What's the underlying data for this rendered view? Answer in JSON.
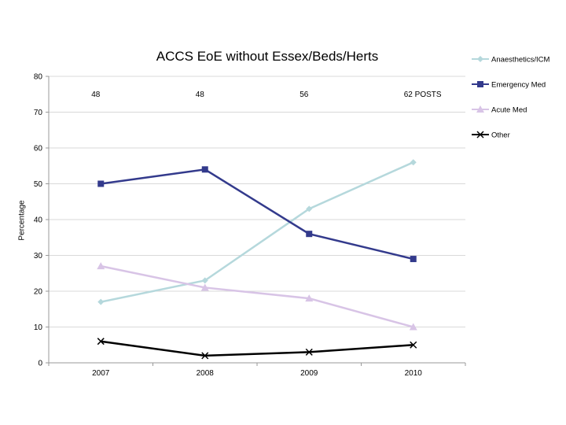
{
  "chart_data": {
    "type": "line",
    "title": "ACCS EoE  without Essex/Beds/Herts",
    "xlabel": "",
    "ylabel": "Percentage",
    "categories": [
      "2007",
      "2008",
      "2009",
      "2010"
    ],
    "ylim": [
      0,
      80
    ],
    "yticks": [
      0,
      10,
      20,
      30,
      40,
      50,
      60,
      70,
      80
    ],
    "grid": true,
    "legend_position": "top-right",
    "annotations": [
      "48",
      "48",
      "56",
      "62  POSTS"
    ],
    "series": [
      {
        "name": "Anaesthetics/ICM",
        "values": [
          17,
          23,
          43,
          56
        ],
        "color": "#b5d8dc",
        "marker": "diamond"
      },
      {
        "name": "Emergency Med",
        "values": [
          50,
          54,
          36,
          29
        ],
        "color": "#333a8c",
        "marker": "square"
      },
      {
        "name": "Acute Med",
        "values": [
          27,
          21,
          18,
          10
        ],
        "color": "#d8c4e6",
        "marker": "triangle"
      },
      {
        "name": "Other",
        "values": [
          6,
          2,
          3,
          5
        ],
        "color": "#000000",
        "marker": "x"
      }
    ]
  }
}
